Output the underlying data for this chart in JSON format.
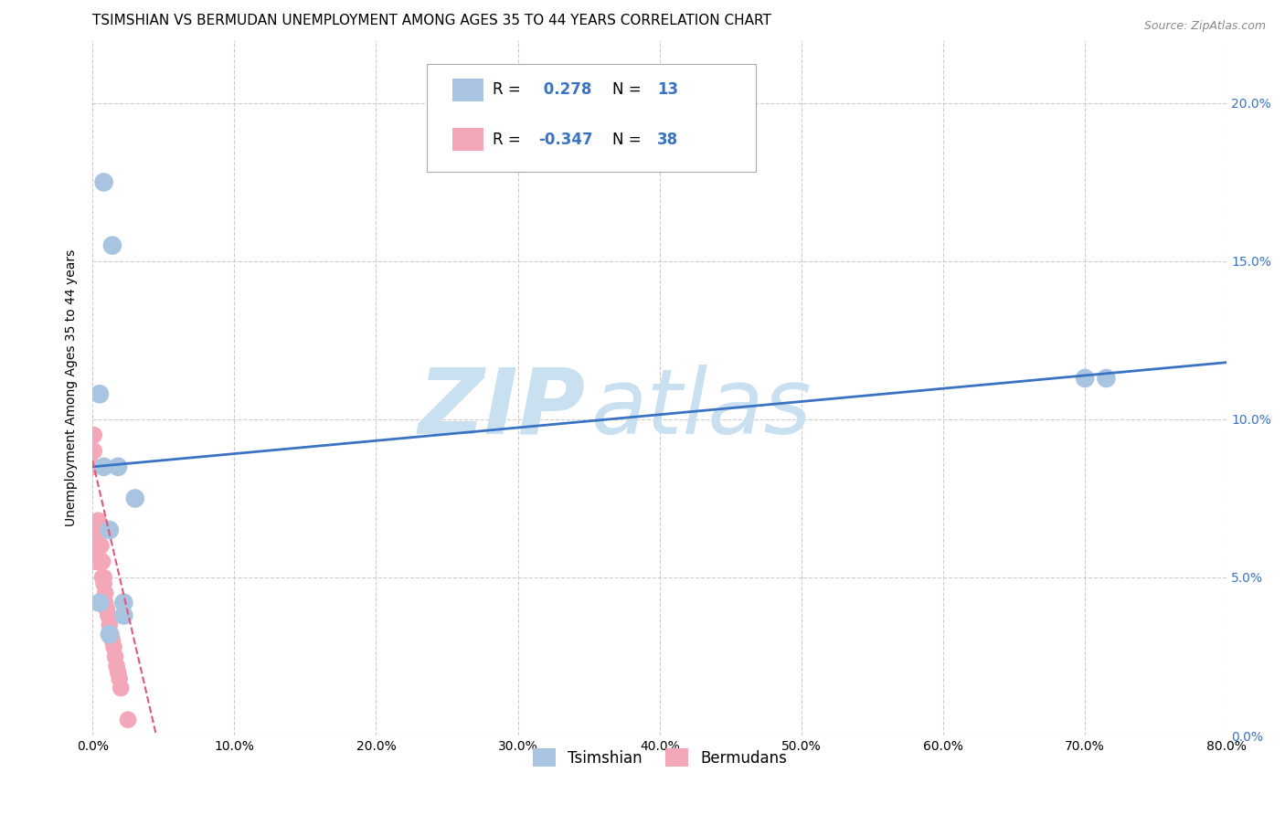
{
  "title": "TSIMSHIAN VS BERMUDAN UNEMPLOYMENT AMONG AGES 35 TO 44 YEARS CORRELATION CHART",
  "source": "Source: ZipAtlas.com",
  "ylabel": "Unemployment Among Ages 35 to 44 years",
  "xlim": [
    0.0,
    0.8
  ],
  "ylim": [
    0.0,
    0.22
  ],
  "yticks": [
    0.0,
    0.05,
    0.1,
    0.15,
    0.2
  ],
  "ytick_labels": [
    "0.0%",
    "5.0%",
    "10.0%",
    "15.0%",
    "20.0%"
  ],
  "xticks": [
    0.0,
    0.1,
    0.2,
    0.3,
    0.4,
    0.5,
    0.6,
    0.7,
    0.8
  ],
  "xtick_labels": [
    "0.0%",
    "10.0%",
    "20.0%",
    "30.0%",
    "40.0%",
    "50.0%",
    "60.0%",
    "70.0%",
    "80.0%"
  ],
  "tsimshian_color": "#a8c4e0",
  "bermudans_color": "#f4a7b9",
  "trend_blue_color": "#3a72c4",
  "trend_pink_color": "#e05878",
  "watermark_color": "#c8e0f0",
  "background_color": "#ffffff",
  "R_tsimshian": 0.278,
  "N_tsimshian": 13,
  "R_bermudans": -0.347,
  "N_bermudans": 38,
  "tsimshian_x": [
    0.008,
    0.014,
    0.005,
    0.018,
    0.03,
    0.008,
    0.012,
    0.022,
    0.022,
    0.012,
    0.7,
    0.715,
    0.005
  ],
  "tsimshian_y": [
    0.175,
    0.155,
    0.108,
    0.085,
    0.075,
    0.085,
    0.065,
    0.042,
    0.038,
    0.032,
    0.113,
    0.113,
    0.042
  ],
  "bermudans_x": [
    0.001,
    0.001,
    0.001,
    0.002,
    0.002,
    0.002,
    0.002,
    0.003,
    0.003,
    0.003,
    0.003,
    0.004,
    0.004,
    0.004,
    0.004,
    0.005,
    0.005,
    0.005,
    0.006,
    0.006,
    0.007,
    0.007,
    0.008,
    0.008,
    0.009,
    0.009,
    0.01,
    0.011,
    0.012,
    0.013,
    0.014,
    0.015,
    0.016,
    0.017,
    0.018,
    0.019,
    0.02,
    0.025
  ],
  "bermudans_y": [
    0.095,
    0.09,
    0.085,
    0.065,
    0.062,
    0.06,
    0.055,
    0.065,
    0.063,
    0.058,
    0.055,
    0.068,
    0.065,
    0.06,
    0.055,
    0.065,
    0.06,
    0.055,
    0.06,
    0.055,
    0.055,
    0.05,
    0.05,
    0.048,
    0.045,
    0.042,
    0.04,
    0.038,
    0.035,
    0.032,
    0.03,
    0.028,
    0.025,
    0.022,
    0.02,
    0.018,
    0.015,
    0.005
  ],
  "legend_label_blue": "Tsimshian",
  "legend_label_pink": "Bermudans",
  "title_fontsize": 11,
  "axis_fontsize": 10,
  "tick_fontsize": 10,
  "legend_fontsize": 12,
  "blue_trend_x": [
    0.0,
    0.8
  ],
  "blue_trend_y": [
    0.085,
    0.118
  ],
  "pink_trend_x": [
    0.0,
    0.045
  ],
  "pink_trend_y": [
    0.087,
    0.0
  ]
}
